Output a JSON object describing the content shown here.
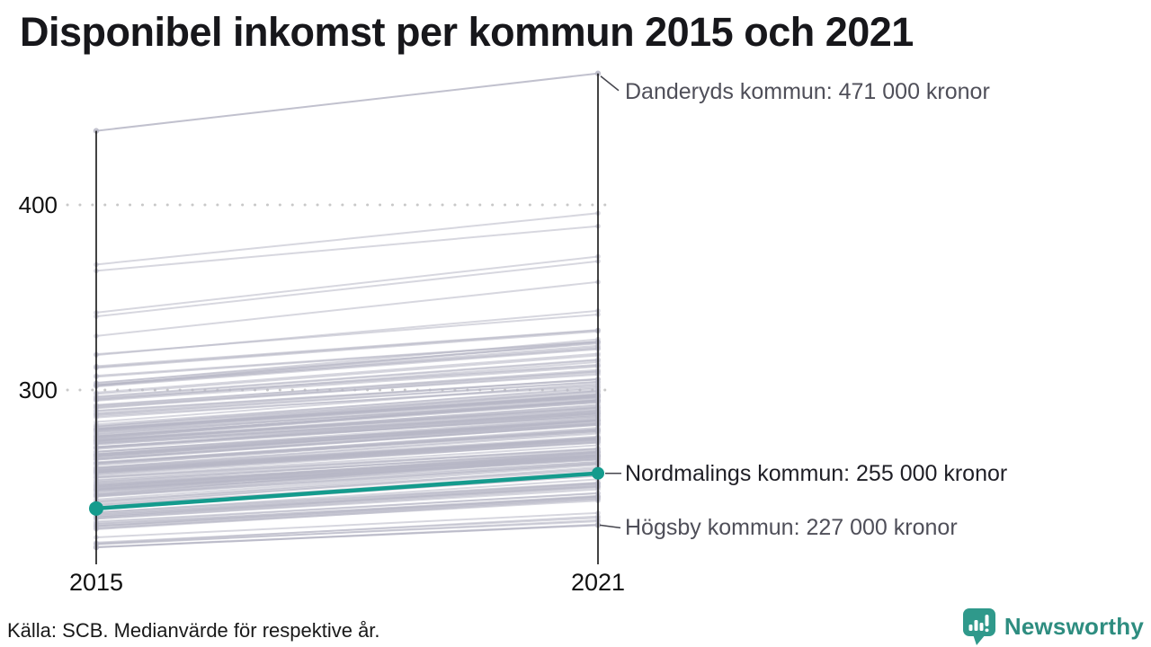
{
  "chart_data": {
    "type": "slope",
    "title": "Disponibel inkomst per kommun 2015 och 2021",
    "categories": [
      "2015",
      "2021"
    ],
    "yticks": [
      400,
      300
    ],
    "ylim": [
      205,
      480
    ],
    "grid": "dotted horizontal gridlines at ticks",
    "legend": "none",
    "unit_note": "tusental kronor (labels show '000 kronor')",
    "series": [
      {
        "name": "Danderyds kommun",
        "values": [
          440,
          471
        ],
        "label": "Danderyds kommun: 471 000 kronor",
        "highlight": false
      },
      {
        "name": "Nordmalings kommun",
        "values": [
          236,
          255
        ],
        "label": "Nordmalings kommun: 255 000 kronor",
        "highlight": true
      },
      {
        "name": "Högsby kommun",
        "values": [
          215,
          227
        ],
        "label": "Högsby kommun: 227 000 kronor",
        "highlight": false
      }
    ],
    "background_clusters": [
      {
        "count": 2,
        "v2015": [
          364,
          368
        ],
        "v2021": [
          386,
          398
        ]
      },
      {
        "count": 3,
        "v2015": [
          329,
          343
        ],
        "v2021": [
          360,
          372
        ]
      },
      {
        "count": 2,
        "v2015": [
          317,
          324
        ],
        "v2021": [
          340,
          346
        ]
      },
      {
        "count": 5,
        "v2015": [
          305,
          313
        ],
        "v2021": [
          325,
          334
        ]
      },
      {
        "count": 28,
        "v2015": [
          284,
          304
        ],
        "v2021": [
          301,
          326
        ]
      },
      {
        "count": 118,
        "v2015": [
          245,
          283
        ],
        "v2021": [
          262,
          302
        ]
      },
      {
        "count": 38,
        "v2015": [
          224,
          245
        ],
        "v2021": [
          239,
          265
        ]
      },
      {
        "count": 6,
        "v2015": [
          215,
          223
        ],
        "v2021": [
          227,
          238
        ]
      }
    ]
  },
  "footer": {
    "source": "Källa: SCB. Medianvärde för respektive år.",
    "logo_text": "Newsworthy"
  },
  "colors": {
    "accent_teal": "#149b8d",
    "line_gray": "#b7b7c6",
    "axis": "#141414",
    "grid": "#c9c9c9",
    "connector": "#45454d",
    "annotation_gray": "#4f4f59",
    "annotation_dark": "#1f1f26",
    "title": "#17171b",
    "logo_teal": "#2f998b",
    "logo_text_teal": "#2e8d80"
  }
}
